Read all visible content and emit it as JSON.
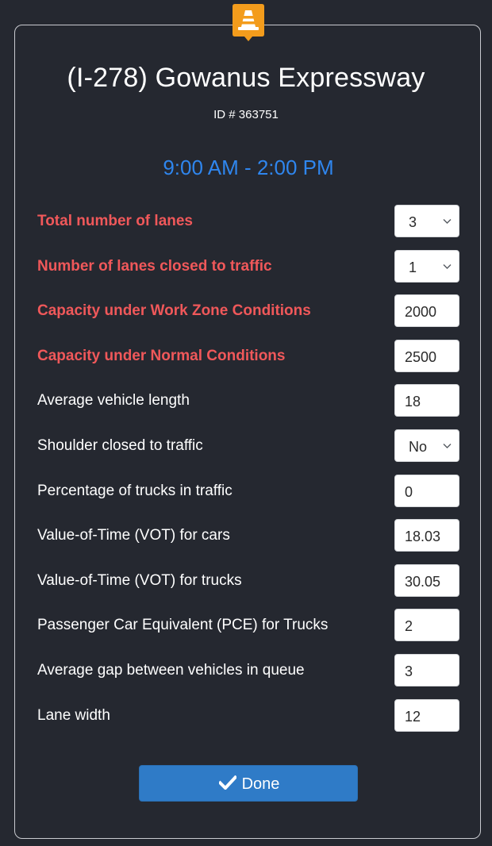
{
  "header": {
    "title": "(I-278) Gowanus Expressway",
    "id_line": "ID # 363751",
    "time_range": "9:00 AM - 2:00 PM"
  },
  "fields": [
    {
      "label": "Total number of lanes",
      "value": "3",
      "kind": "select",
      "required": true
    },
    {
      "label": "Number of lanes closed to traffic",
      "value": "1",
      "kind": "select",
      "required": true
    },
    {
      "label": "Capacity under Work Zone Conditions",
      "value": "2000",
      "kind": "input",
      "required": true
    },
    {
      "label": "Capacity under Normal Conditions",
      "value": "2500",
      "kind": "input",
      "required": true
    },
    {
      "label": "Average vehicle length",
      "value": "18",
      "kind": "input",
      "required": false
    },
    {
      "label": "Shoulder closed to traffic",
      "value": "No",
      "kind": "select",
      "required": false
    },
    {
      "label": "Percentage of trucks in traffic",
      "value": "0",
      "kind": "input",
      "required": false
    },
    {
      "label": "Value-of-Time (VOT) for cars",
      "value": "18.03",
      "kind": "input",
      "required": false
    },
    {
      "label": "Value-of-Time (VOT) for trucks",
      "value": "30.05",
      "kind": "input",
      "required": false
    },
    {
      "label": "Passenger Car Equivalent (PCE) for Trucks",
      "value": "2",
      "kind": "input",
      "required": false
    },
    {
      "label": "Average gap between vehicles in queue",
      "value": "3",
      "kind": "input",
      "required": false
    },
    {
      "label": "Lane width",
      "value": "12",
      "kind": "input",
      "required": false
    }
  ],
  "actions": {
    "done_label": "Done"
  },
  "icons": {
    "marker": "traffic-cone-icon",
    "done": "check-icon",
    "dropdown": "chevron-down-icon"
  },
  "colors": {
    "background": "#252830",
    "required_label": "#f0585a",
    "time_range": "#2f86ee",
    "marker": "#f39c1c",
    "done_button": "#2f7bc7"
  }
}
